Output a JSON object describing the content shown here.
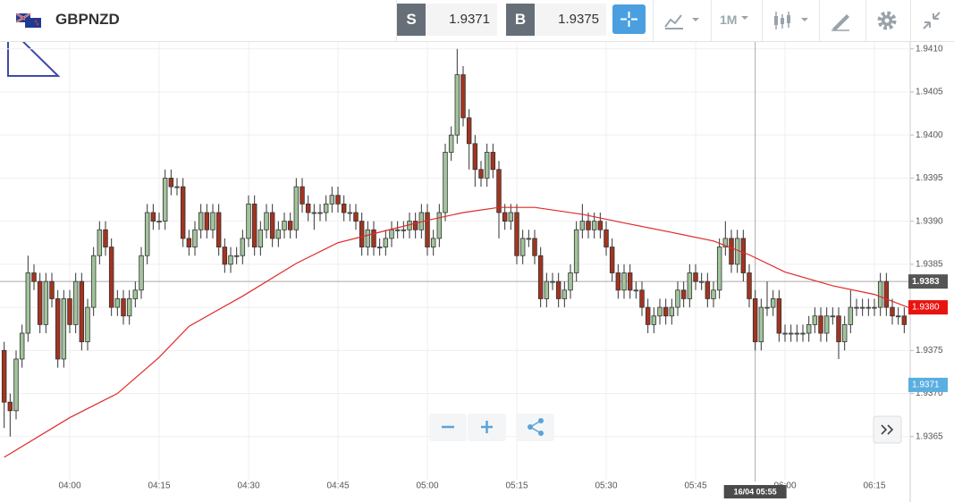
{
  "toolbar": {
    "symbol": "GBPNZD",
    "sell_label": "S",
    "sell_price": "1.9371",
    "buy_label": "B",
    "buy_price": "1.9375",
    "timeframe": "1M"
  },
  "chart_data": {
    "type": "candlestick",
    "x": [
      229,
      230,
      231,
      232,
      233,
      234,
      235,
      236,
      237,
      238,
      239,
      240,
      241,
      242,
      243,
      244,
      245,
      246,
      247,
      248,
      249,
      250,
      251,
      252,
      253,
      254,
      255,
      256,
      257,
      258,
      259,
      260,
      261,
      262,
      263,
      264,
      265,
      266,
      267,
      268,
      269,
      270,
      271,
      272,
      273,
      274,
      275,
      276,
      277,
      278,
      279,
      280,
      281,
      282,
      283,
      284,
      285,
      286,
      287,
      288,
      289,
      290,
      291,
      292,
      293,
      294,
      295,
      296,
      297,
      298,
      299,
      300,
      301,
      302,
      303,
      304,
      305,
      306,
      307,
      308,
      309,
      310,
      311,
      312,
      313,
      314,
      315,
      316,
      317,
      318,
      319,
      320,
      321,
      322,
      323,
      324,
      325,
      326,
      327,
      328,
      329,
      330,
      331,
      332,
      333,
      334,
      335,
      336,
      337,
      338,
      339,
      340,
      341,
      342,
      343,
      344,
      345,
      346,
      347,
      348,
      349,
      350,
      351,
      352,
      353,
      354,
      355,
      356,
      357,
      358,
      359,
      360,
      361,
      362,
      363,
      364,
      365,
      366,
      367,
      368,
      369,
      370,
      371,
      372,
      373,
      374,
      375,
      376,
      377,
      378,
      379,
      380
    ],
    "open": [
      1.9375,
      1.9369,
      1.9368,
      1.9374,
      1.9377,
      1.9384,
      1.9383,
      1.9378,
      1.9383,
      1.9381,
      1.9374,
      1.9381,
      1.9378,
      1.9383,
      1.9376,
      1.938,
      1.9386,
      1.9389,
      1.9387,
      1.938,
      1.9381,
      1.9379,
      1.9381,
      1.9382,
      1.9386,
      1.9391,
      1.939,
      1.939,
      1.9395,
      1.9394,
      1.9394,
      1.9388,
      1.9387,
      1.9389,
      1.9391,
      1.9389,
      1.9391,
      1.9387,
      1.9385,
      1.9386,
      1.9386,
      1.9388,
      1.9392,
      1.9387,
      1.9389,
      1.9391,
      1.9388,
      1.9389,
      1.939,
      1.9389,
      1.9394,
      1.9392,
      1.9391,
      1.9391,
      1.9391,
      1.9392,
      1.9393,
      1.9392,
      1.9391,
      1.9391,
      1.939,
      1.9387,
      1.9389,
      1.9387,
      1.9387,
      1.9388,
      1.9389,
      1.9389,
      1.9389,
      1.939,
      1.9389,
      1.9391,
      1.9387,
      1.9388,
      1.9391,
      1.9398,
      1.94,
      1.9407,
      1.9402,
      1.9399,
      1.9396,
      1.9395,
      1.9398,
      1.9396,
      1.9391,
      1.939,
      1.9391,
      1.9386,
      1.9388,
      1.9388,
      1.9386,
      1.9381,
      1.9383,
      1.9383,
      1.9381,
      1.9382,
      1.9384,
      1.9389,
      1.939,
      1.9389,
      1.939,
      1.9389,
      1.9387,
      1.9384,
      1.9382,
      1.9384,
      1.9382,
      1.9382,
      1.938,
      1.9378,
      1.9379,
      1.938,
      1.9379,
      1.938,
      1.9382,
      1.9381,
      1.9384,
      1.9383,
      1.9383,
      1.9381,
      1.9382,
      1.9387,
      1.9388,
      1.9385,
      1.9388,
      1.9384,
      1.9381,
      1.9376,
      1.938,
      1.938,
      1.9381,
      1.9377,
      1.9377,
      1.9377,
      1.9377,
      1.9377,
      1.9378,
      1.9379,
      1.9377,
      1.9379,
      1.9379,
      1.9376,
      1.9378,
      1.938,
      1.938,
      1.938,
      1.938,
      1.938,
      1.9383,
      1.938,
      1.9379,
      1.9379
    ],
    "high": [
      1.9376,
      1.937,
      1.9375,
      1.9378,
      1.9386,
      1.9385,
      1.9384,
      1.9384,
      1.9384,
      1.9382,
      1.9382,
      1.9382,
      1.9384,
      1.9384,
      1.9381,
      1.9387,
      1.939,
      1.939,
      1.9388,
      1.9382,
      1.9382,
      1.9382,
      1.9383,
      1.9387,
      1.9392,
      1.9392,
      1.9391,
      1.9396,
      1.9396,
      1.9395,
      1.9395,
      1.9389,
      1.939,
      1.9392,
      1.9392,
      1.9392,
      1.9392,
      1.9388,
      1.9387,
      1.9387,
      1.9389,
      1.9393,
      1.9393,
      1.939,
      1.9392,
      1.9392,
      1.939,
      1.9391,
      1.9391,
      1.9395,
      1.9395,
      1.9393,
      1.9392,
      1.9392,
      1.9393,
      1.9394,
      1.9394,
      1.9393,
      1.9392,
      1.9392,
      1.9391,
      1.939,
      1.939,
      1.9388,
      1.9389,
      1.939,
      1.939,
      1.939,
      1.9391,
      1.9391,
      1.9392,
      1.9392,
      1.9389,
      1.9392,
      1.9399,
      1.9401,
      1.941,
      1.9408,
      1.9403,
      1.94,
      1.9397,
      1.9399,
      1.9399,
      1.9397,
      1.9392,
      1.9392,
      1.9392,
      1.9389,
      1.9389,
      1.9389,
      1.9387,
      1.9384,
      1.9384,
      1.9384,
      1.9383,
      1.9385,
      1.939,
      1.9392,
      1.9391,
      1.9391,
      1.9391,
      1.939,
      1.9388,
      1.9385,
      1.9385,
      1.9385,
      1.9383,
      1.9383,
      1.9381,
      1.938,
      1.9381,
      1.9381,
      1.9381,
      1.9383,
      1.9383,
      1.9385,
      1.9385,
      1.9384,
      1.9384,
      1.9383,
      1.9388,
      1.939,
      1.9389,
      1.9389,
      1.9389,
      1.9385,
      1.9382,
      1.9381,
      1.9383,
      1.9382,
      1.9382,
      1.9378,
      1.9378,
      1.9378,
      1.9378,
      1.9379,
      1.938,
      1.938,
      1.938,
      1.938,
      1.938,
      1.9379,
      1.9382,
      1.9381,
      1.9381,
      1.9381,
      1.9381,
      1.9384,
      1.9384,
      1.9381,
      1.938,
      1.938
    ],
    "low": [
      1.9366,
      1.9365,
      1.9367,
      1.9373,
      1.9376,
      1.9382,
      1.9377,
      1.9377,
      1.938,
      1.9373,
      1.9373,
      1.9377,
      1.9377,
      1.9375,
      1.9375,
      1.9379,
      1.9385,
      1.9386,
      1.9379,
      1.9379,
      1.9378,
      1.9378,
      1.938,
      1.9381,
      1.9385,
      1.9389,
      1.9389,
      1.9389,
      1.9393,
      1.9393,
      1.9387,
      1.9386,
      1.9386,
      1.9388,
      1.9388,
      1.9388,
      1.9386,
      1.9384,
      1.9384,
      1.9385,
      1.9385,
      1.9387,
      1.9386,
      1.9386,
      1.9388,
      1.9387,
      1.9387,
      1.9388,
      1.9388,
      1.9388,
      1.9391,
      1.939,
      1.9389,
      1.939,
      1.939,
      1.9391,
      1.9391,
      1.939,
      1.939,
      1.9389,
      1.9386,
      1.9386,
      1.9386,
      1.9386,
      1.9386,
      1.9387,
      1.9388,
      1.9388,
      1.9388,
      1.9388,
      1.9388,
      1.9386,
      1.9386,
      1.9387,
      1.939,
      1.9397,
      1.9399,
      1.9401,
      1.9396,
      1.9394,
      1.9394,
      1.9394,
      1.9395,
      1.9388,
      1.9389,
      1.9389,
      1.9385,
      1.9385,
      1.9387,
      1.9385,
      1.938,
      1.938,
      1.9382,
      1.938,
      1.938,
      1.9381,
      1.9383,
      1.9388,
      1.9388,
      1.9388,
      1.9388,
      1.9386,
      1.9383,
      1.9381,
      1.9381,
      1.9381,
      1.9381,
      1.9379,
      1.9377,
      1.9377,
      1.9378,
      1.9378,
      1.9378,
      1.9379,
      1.938,
      1.938,
      1.9382,
      1.9382,
      1.938,
      1.938,
      1.9381,
      1.9386,
      1.9384,
      1.9384,
      1.9383,
      1.938,
      1.9375,
      1.9375,
      1.9379,
      1.9379,
      1.9376,
      1.9376,
      1.9376,
      1.9376,
      1.9376,
      1.9376,
      1.9377,
      1.9376,
      1.9376,
      1.9378,
      1.9374,
      1.9375,
      1.9377,
      1.9379,
      1.9379,
      1.9379,
      1.9379,
      1.9379,
      1.9379,
      1.9378,
      1.9378,
      1.9377
    ],
    "close": [
      1.9369,
      1.9368,
      1.9374,
      1.9377,
      1.9384,
      1.9383,
      1.9378,
      1.9383,
      1.9381,
      1.9374,
      1.9381,
      1.9378,
      1.9383,
      1.9376,
      1.938,
      1.9386,
      1.9389,
      1.9387,
      1.938,
      1.9381,
      1.9379,
      1.9381,
      1.9382,
      1.9386,
      1.9391,
      1.939,
      1.939,
      1.9395,
      1.9394,
      1.9394,
      1.9388,
      1.9387,
      1.9389,
      1.9391,
      1.9389,
      1.9391,
      1.9387,
      1.9385,
      1.9386,
      1.9386,
      1.9388,
      1.9392,
      1.9387,
      1.9389,
      1.9391,
      1.9388,
      1.9389,
      1.939,
      1.9389,
      1.9394,
      1.9392,
      1.9391,
      1.9391,
      1.9391,
      1.9392,
      1.9393,
      1.9392,
      1.9391,
      1.9391,
      1.939,
      1.9387,
      1.9389,
      1.9387,
      1.9387,
      1.9388,
      1.9389,
      1.9389,
      1.9389,
      1.939,
      1.9389,
      1.9391,
      1.9387,
      1.9388,
      1.9391,
      1.9398,
      1.94,
      1.9407,
      1.9402,
      1.9399,
      1.9396,
      1.9395,
      1.9398,
      1.9396,
      1.9391,
      1.939,
      1.9391,
      1.9386,
      1.9388,
      1.9388,
      1.9386,
      1.9381,
      1.9383,
      1.9383,
      1.9381,
      1.9382,
      1.9384,
      1.9389,
      1.939,
      1.9389,
      1.939,
      1.9389,
      1.9387,
      1.9384,
      1.9382,
      1.9384,
      1.9382,
      1.9382,
      1.938,
      1.9378,
      1.9379,
      1.938,
      1.9379,
      1.938,
      1.9382,
      1.9381,
      1.9384,
      1.9383,
      1.9383,
      1.9381,
      1.9382,
      1.9387,
      1.9388,
      1.9385,
      1.9388,
      1.9384,
      1.9381,
      1.9376,
      1.938,
      1.938,
      1.9381,
      1.9377,
      1.9377,
      1.9377,
      1.9377,
      1.9377,
      1.9378,
      1.9379,
      1.9377,
      1.9379,
      1.9379,
      1.9376,
      1.9378,
      1.938,
      1.938,
      1.938,
      1.938,
      1.938,
      1.9383,
      1.938,
      1.9379,
      1.9379,
      1.9378
    ],
    "up_color": "#a2c49c",
    "down_color": "#a23420",
    "moving_average": {
      "color": "#e0292a",
      "x": [
        229,
        240,
        248,
        255,
        260,
        269,
        278,
        285,
        293,
        300,
        306,
        312,
        318,
        326,
        333,
        341,
        348,
        354,
        360,
        368,
        375,
        381
      ],
      "values": [
        1.93626,
        1.93672,
        1.937,
        1.93742,
        1.93778,
        1.93813,
        1.93851,
        1.93875,
        1.93889,
        1.93901,
        1.9391,
        1.93916,
        1.93916,
        1.93908,
        1.93898,
        1.93887,
        1.93877,
        1.93861,
        1.93841,
        1.93825,
        1.93815,
        1.93799
      ]
    },
    "xlim": [
      228.3,
      381
    ],
    "xticks": [
      {
        "value": 240,
        "label": "04:00"
      },
      {
        "value": 255,
        "label": "04:15"
      },
      {
        "value": 270,
        "label": "04:30"
      },
      {
        "value": 285,
        "label": "04:45"
      },
      {
        "value": 300,
        "label": "05:00"
      },
      {
        "value": 315,
        "label": "05:15"
      },
      {
        "value": 330,
        "label": "05:30"
      },
      {
        "value": 345,
        "label": "05:45"
      },
      {
        "value": 360,
        "label": "06:00"
      },
      {
        "value": 375,
        "label": "06:15"
      }
    ],
    "ylim": [
      1.936,
      1.94108
    ],
    "yticks": [
      1.9365,
      {
        "value": 1.937,
        "label": "1.9370"
      },
      1.9375,
      {
        "value": 1.938,
        "label": "1.9380"
      },
      1.9385,
      {
        "value": 1.939,
        "label": "1.9390"
      },
      1.9395,
      {
        "value": 1.94,
        "label": "1.9400"
      },
      1.9405,
      {
        "value": 1.941,
        "label": "1.9410"
      }
    ],
    "grid": true,
    "crosshair": {
      "x": 355,
      "x_label": "16/04 05:55",
      "y": 1.9383
    },
    "price_markers": [
      {
        "value": 1.938,
        "label": "1.9380",
        "color": "#e8130f"
      },
      {
        "value": 1.9371,
        "color": "#5aaee0"
      }
    ]
  }
}
